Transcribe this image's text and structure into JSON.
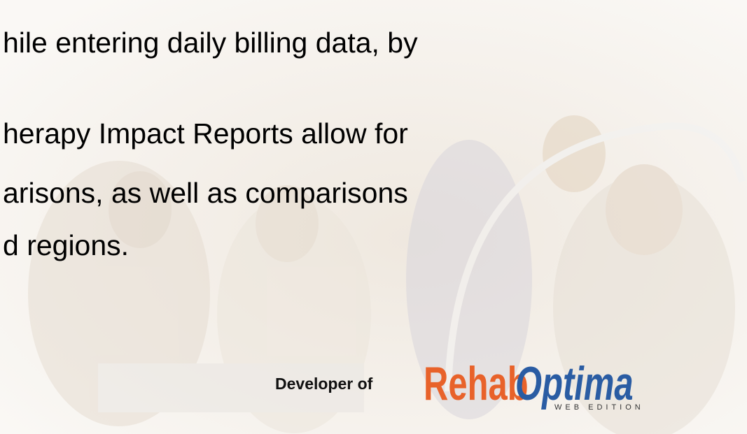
{
  "slide": {
    "lines": [
      "hile entering daily billing data, by",
      "herapy Impact Reports allow for",
      "arisons, as well as comparisons",
      "d regions."
    ]
  },
  "logo": {
    "prefix": "Developer of",
    "brand_1": "Rehab",
    "brand_2": "Optima",
    "edition": "WEB EDITION"
  }
}
